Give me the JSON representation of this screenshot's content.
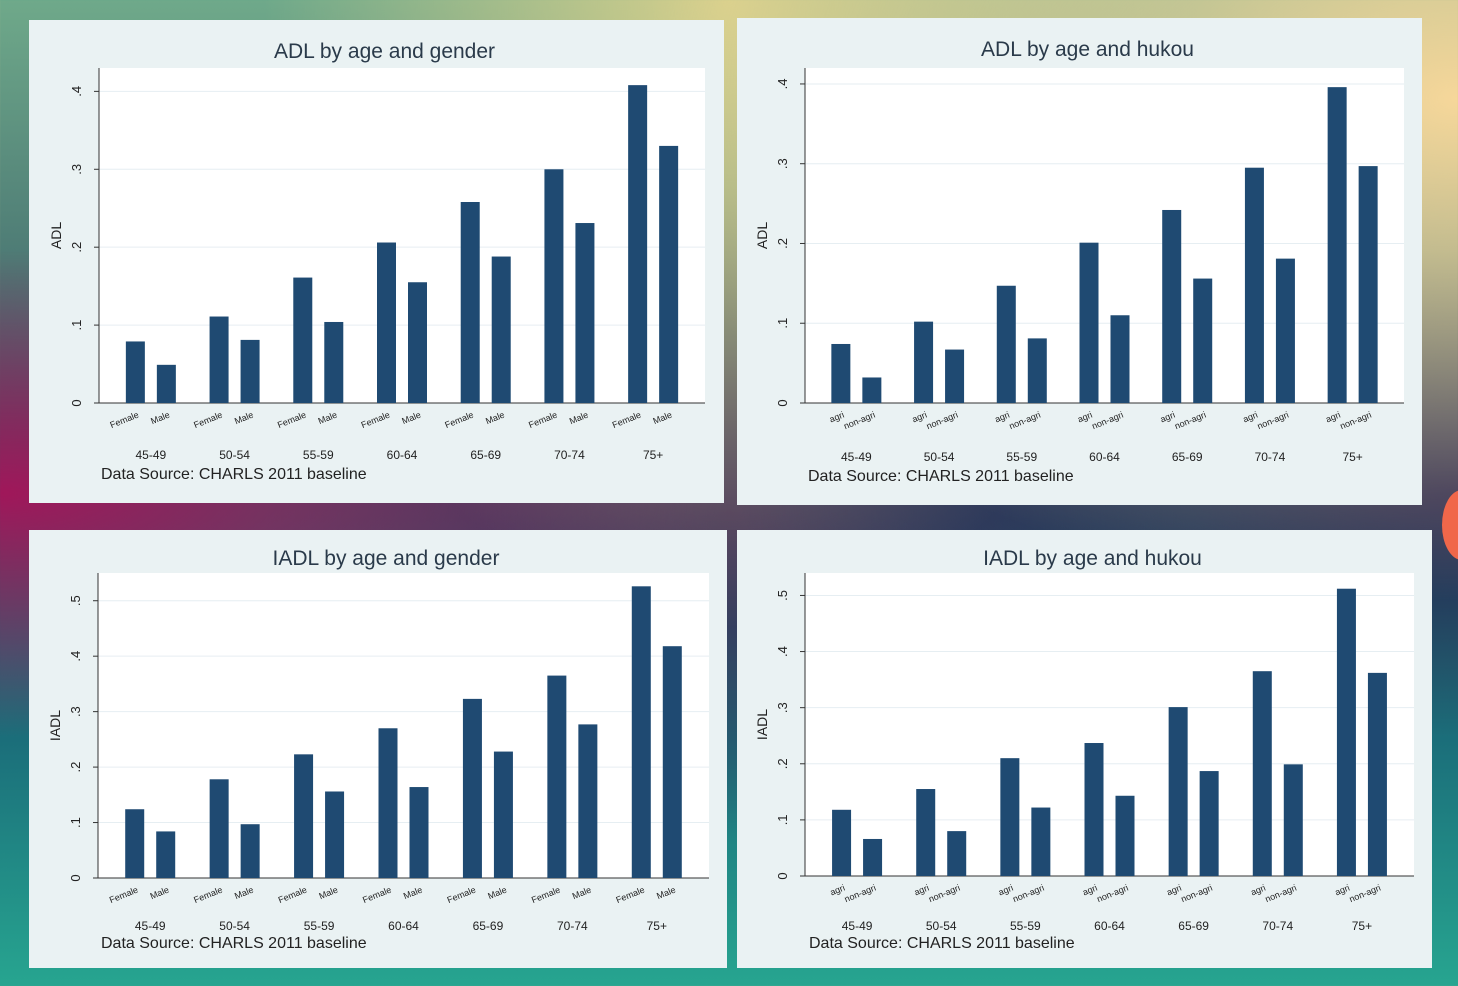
{
  "theme": {
    "bar_color": "#1f4a72",
    "panel_bg": "#eaf2f3",
    "plot_bg": "#ffffff",
    "grid_color": "#e6eef2"
  },
  "chart_data": [
    {
      "type": "bar",
      "title": "ADL by age and gender",
      "xlabel": "",
      "ylabel": "ADL",
      "groups": [
        "45-49",
        "50-54",
        "55-59",
        "60-64",
        "65-69",
        "70-74",
        "75+"
      ],
      "sub_labels": [
        "Female",
        "Male"
      ],
      "series": [
        {
          "name": "Female",
          "values": [
            0.079,
            0.111,
            0.161,
            0.206,
            0.258,
            0.3,
            0.408
          ]
        },
        {
          "name": "Male",
          "values": [
            0.049,
            0.081,
            0.104,
            0.155,
            0.188,
            0.231,
            0.33
          ]
        }
      ],
      "yticks": [
        0,
        0.1,
        0.2,
        0.3,
        0.4
      ],
      "ytick_labels": [
        "0",
        ".1",
        ".2",
        ".3",
        ".4"
      ],
      "ylim": [
        0,
        0.43
      ],
      "note": "Data Source: CHARLS 2011 baseline",
      "grid": true,
      "legend": "none"
    },
    {
      "type": "bar",
      "title": "ADL by age and hukou",
      "xlabel": "",
      "ylabel": "ADL",
      "groups": [
        "45-49",
        "50-54",
        "55-59",
        "60-64",
        "65-69",
        "70-74",
        "75+"
      ],
      "sub_labels": [
        "agri",
        "non-agri"
      ],
      "series": [
        {
          "name": "agri",
          "values": [
            0.074,
            0.102,
            0.147,
            0.201,
            0.242,
            0.295,
            0.396
          ]
        },
        {
          "name": "non-agri",
          "values": [
            0.032,
            0.067,
            0.081,
            0.11,
            0.156,
            0.181,
            0.297
          ]
        }
      ],
      "yticks": [
        0,
        0.1,
        0.2,
        0.3,
        0.4
      ],
      "ytick_labels": [
        "0",
        ".1",
        ".2",
        ".3",
        ".4"
      ],
      "ylim": [
        0,
        0.42
      ],
      "note": "Data Source: CHARLS 2011 baseline",
      "grid": true,
      "legend": "none"
    },
    {
      "type": "bar",
      "title": "IADL by age and gender",
      "xlabel": "",
      "ylabel": "IADL",
      "groups": [
        "45-49",
        "50-54",
        "55-59",
        "60-64",
        "65-69",
        "70-74",
        "75+"
      ],
      "sub_labels": [
        "Female",
        "Male"
      ],
      "series": [
        {
          "name": "Female",
          "values": [
            0.124,
            0.178,
            0.223,
            0.27,
            0.323,
            0.365,
            0.526
          ]
        },
        {
          "name": "Male",
          "values": [
            0.084,
            0.097,
            0.156,
            0.164,
            0.228,
            0.277,
            0.418
          ]
        }
      ],
      "yticks": [
        0,
        0.1,
        0.2,
        0.3,
        0.4,
        0.5
      ],
      "ytick_labels": [
        "0",
        ".1",
        ".2",
        ".3",
        ".4",
        ".5"
      ],
      "ylim": [
        0,
        0.55
      ],
      "note": "Data Source: CHARLS 2011 baseline",
      "grid": true,
      "legend": "none"
    },
    {
      "type": "bar",
      "title": "IADL by age and hukou",
      "xlabel": "",
      "ylabel": "IADL",
      "groups": [
        "45-49",
        "50-54",
        "55-59",
        "60-64",
        "65-69",
        "70-74",
        "75+"
      ],
      "sub_labels": [
        "agri",
        "non-agri"
      ],
      "series": [
        {
          "name": "agri",
          "values": [
            0.118,
            0.155,
            0.21,
            0.237,
            0.301,
            0.365,
            0.512
          ]
        },
        {
          "name": "non-agri",
          "values": [
            0.066,
            0.08,
            0.122,
            0.143,
            0.187,
            0.199,
            0.362
          ]
        }
      ],
      "yticks": [
        0,
        0.1,
        0.2,
        0.3,
        0.4,
        0.5
      ],
      "ytick_labels": [
        "0",
        ".1",
        ".2",
        ".3",
        ".4",
        ".5"
      ],
      "ylim": [
        0,
        0.54
      ],
      "note": "Data Source: CHARLS 2011 baseline",
      "grid": true,
      "legend": "none"
    }
  ]
}
